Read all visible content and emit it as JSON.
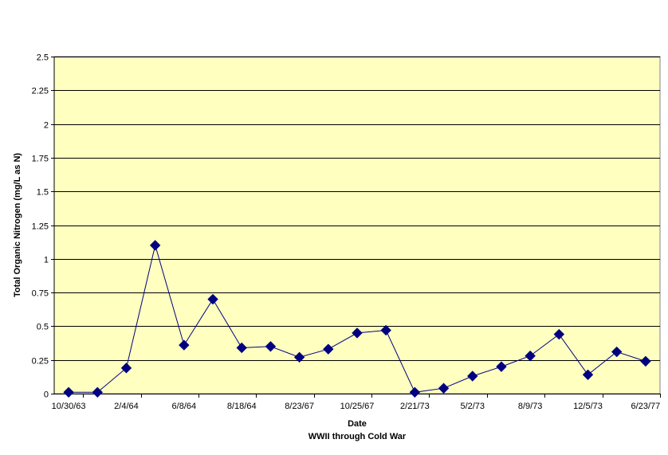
{
  "chart_data": {
    "type": "line",
    "title": "",
    "xlabel": "Date",
    "xlabel_sub": "WWII through Cold War",
    "ylabel": "Total Organic Nitrogen (mg/L as N)",
    "ylim": [
      0,
      2.5
    ],
    "yticks": [
      "0",
      "0.25",
      "0.5",
      "0.75",
      "1",
      "1.25",
      "1.5",
      "1.75",
      "2",
      "2.25",
      "2.5"
    ],
    "xtick_labels": [
      "10/30/63",
      "2/4/64",
      "6/8/64",
      "8/18/64",
      "8/23/67",
      "10/25/67",
      "2/21/73",
      "5/2/73",
      "8/9/73",
      "12/5/73",
      "6/23/77"
    ],
    "grid": true,
    "legend": "none",
    "colors": {
      "plot_bg": "#FFFFC0",
      "series": "#000080",
      "grid": "#000000"
    },
    "series": [
      {
        "marker": "diamond",
        "values": [
          0.01,
          0.01,
          0.19,
          1.1,
          0.36,
          0.7,
          0.34,
          0.35,
          0.27,
          0.33,
          0.45,
          0.47,
          0.01,
          0.04,
          0.13,
          0.2,
          0.28,
          0.44,
          0.14,
          0.31,
          0.24
        ]
      }
    ]
  }
}
